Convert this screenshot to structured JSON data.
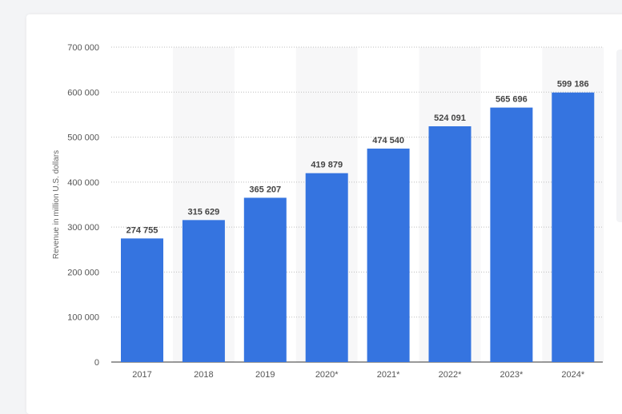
{
  "chart_data": {
    "type": "bar",
    "categories": [
      "2017",
      "2018",
      "2019",
      "2020*",
      "2021*",
      "2022*",
      "2023*",
      "2024*"
    ],
    "values": [
      274755,
      315629,
      365207,
      419879,
      474540,
      524091,
      565696,
      599186
    ],
    "value_labels": [
      "274 755",
      "315 629",
      "365 207",
      "419 879",
      "474 540",
      "524 091",
      "565 696",
      "599 186"
    ],
    "title": "",
    "xlabel": "",
    "ylabel": "Revenue in million U.S. dollars",
    "ylim": [
      0,
      700000
    ],
    "yticks": [
      0,
      100000,
      200000,
      300000,
      400000,
      500000,
      600000,
      700000
    ],
    "ytick_labels": [
      "0",
      "100 000",
      "200 000",
      "300 000",
      "400 000",
      "500 000",
      "600 000",
      "700 000"
    ],
    "grid": true,
    "bar_color": "#3574e0"
  }
}
